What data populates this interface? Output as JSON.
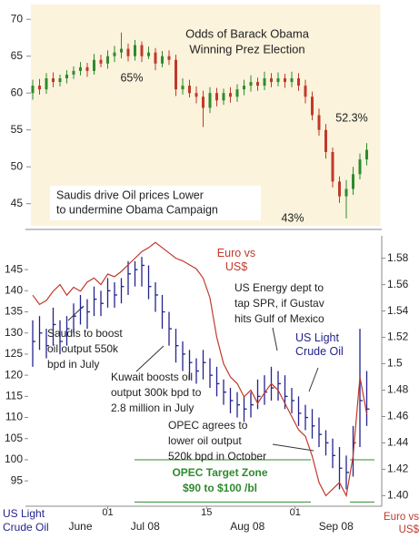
{
  "chart_data": [
    {
      "type": "ohlc",
      "title": [
        "Odds of Barack Obama",
        "Winning Prez Election"
      ],
      "up_color": "#2e8b2e",
      "down_color": "#c0392b",
      "background": "#fbf3dc",
      "x": [
        0,
        1,
        2,
        3,
        4,
        5,
        6,
        7,
        8,
        9,
        10,
        11,
        12,
        13,
        14,
        15,
        16,
        17,
        18,
        19,
        20,
        21,
        22,
        23,
        24,
        25,
        26,
        27,
        28,
        29,
        30,
        31,
        32,
        33,
        34,
        35,
        36,
        37,
        38,
        39,
        40,
        41,
        42,
        43,
        44,
        45,
        46,
        47,
        48,
        49
      ],
      "xlim": [
        -1,
        51
      ],
      "open": [
        60,
        61,
        60.5,
        62,
        61.5,
        62,
        62.5,
        63,
        63.5,
        63,
        64.5,
        64,
        65,
        65.5,
        66,
        65,
        66.5,
        65,
        65.5,
        64,
        65,
        64.5,
        60.5,
        61,
        60,
        59.5,
        58,
        60,
        59,
        60,
        59.5,
        60.5,
        61,
        61.5,
        61,
        62,
        61.5,
        62,
        61.5,
        62,
        61,
        59.5,
        57,
        55,
        52,
        48,
        46,
        47,
        49,
        51
      ],
      "high": [
        61.8,
        61.9,
        62.7,
        62.8,
        62.5,
        63.1,
        63.6,
        64.2,
        64.1,
        65.3,
        65.2,
        65.8,
        66.4,
        68.2,
        66.7,
        67.2,
        67,
        66.3,
        66.1,
        65.7,
        65.8,
        65.2,
        62,
        61.8,
        60.9,
        60.3,
        60.8,
        60.7,
        60.6,
        60.8,
        61.2,
        61.8,
        62.4,
        62.1,
        62.9,
        62.7,
        62.8,
        62.6,
        62.9,
        62.7,
        61.8,
        60.2,
        57.9,
        55.8,
        52.6,
        48.7,
        48.2,
        50,
        51.8,
        53.2
      ],
      "low": [
        59.1,
        59.8,
        59.9,
        60.8,
        60.9,
        61.3,
        61.9,
        62.4,
        62.2,
        62.5,
        63.5,
        63.3,
        64.2,
        64.7,
        64.3,
        64.4,
        64.2,
        64.6,
        63.1,
        63.5,
        63.8,
        59.6,
        59.8,
        59.4,
        58.6,
        55.4,
        57.3,
        58.2,
        58.4,
        58.7,
        58.8,
        59.7,
        60.2,
        60.3,
        60.4,
        60.8,
        60.9,
        60.7,
        60.8,
        60.3,
        58.6,
        56.3,
        54.2,
        51.1,
        47.2,
        45.1,
        43,
        46.2,
        48.3,
        50.2
      ],
      "values": [
        61,
        60.5,
        62,
        61.5,
        62,
        62.5,
        63,
        63.5,
        63,
        64.5,
        64,
        65,
        65.5,
        66,
        65,
        66.5,
        65,
        65.5,
        64,
        65,
        64.5,
        60.5,
        61,
        60,
        59.5,
        58,
        60,
        59,
        60,
        59.5,
        60.5,
        61,
        61.5,
        61,
        62,
        61.5,
        62,
        61.5,
        62,
        61,
        59.5,
        57,
        55,
        52,
        48,
        46,
        47,
        49,
        51,
        52.3
      ],
      "ylim": [
        42,
        72
      ],
      "yticks": [
        45,
        50,
        55,
        60,
        65,
        70
      ],
      "annotations": [
        [
          "65%"
        ],
        [
          "52.3%"
        ],
        [
          "43%"
        ],
        [
          "Saudis drive Oil prices Lower",
          "to undermine Obama Campaign"
        ]
      ]
    },
    {
      "type": "ohlc_line",
      "x": [
        0,
        1,
        2,
        3,
        4,
        5,
        6,
        7,
        8,
        9,
        10,
        11,
        12,
        13,
        14,
        15,
        16,
        17,
        18,
        19,
        20,
        21,
        22,
        23,
        24,
        25,
        26,
        27,
        28,
        29,
        30,
        31,
        32,
        33,
        34,
        35,
        36,
        37,
        38,
        39,
        40,
        41,
        42,
        43,
        44,
        45,
        46,
        47,
        48,
        49
      ],
      "xlim": [
        -1,
        51
      ],
      "xticks": [
        {
          "value": 11,
          "label": "01"
        },
        {
          "value": 25.5,
          "label": "15"
        },
        {
          "value": 38.5,
          "label": "01"
        }
      ],
      "month_labels": [
        {
          "value": 7,
          "label": "June"
        },
        {
          "value": 16.5,
          "label": "Jul 08"
        },
        {
          "value": 31.5,
          "label": "Aug 08"
        },
        {
          "value": 44.5,
          "label": "Sep 08"
        }
      ],
      "ylabel": "US Light Crude Oil",
      "y2label": "Euro vs US$",
      "series": [
        {
          "name": "US Light Crude Oil",
          "color": "#23238e",
          "high": [
            133,
            134,
            131,
            136,
            133,
            134,
            137,
            139,
            138,
            141,
            140,
            143,
            142,
            143,
            147,
            147,
            148,
            146,
            142,
            139,
            135,
            131,
            128,
            126,
            124,
            126,
            124,
            122,
            119,
            117,
            116,
            115,
            116,
            119,
            120,
            122,
            121,
            120,
            117,
            115,
            113,
            112,
            110,
            107,
            105,
            103,
            101,
            108,
            131,
            121
          ],
          "low": [
            122,
            126,
            124,
            127,
            125,
            127,
            130,
            132,
            131,
            134,
            134,
            136,
            136,
            137,
            139,
            141,
            141,
            138,
            135,
            131,
            127,
            123,
            121,
            119,
            118,
            119,
            117,
            115,
            113,
            111,
            110,
            109,
            110,
            112,
            113,
            114,
            114,
            112,
            111,
            108,
            107,
            105,
            103,
            101,
            98,
            93,
            93,
            96,
            103,
            108
          ],
          "values": [
            128,
            130,
            127,
            132,
            128,
            131,
            134,
            136,
            135,
            138,
            137,
            140,
            139,
            141,
            144,
            145,
            146,
            141,
            139,
            135,
            131,
            127,
            125,
            123,
            121,
            123,
            120,
            118,
            116,
            114,
            113,
            112,
            113,
            115,
            116,
            117,
            118,
            115,
            114,
            111,
            110,
            108,
            106,
            104,
            101,
            98,
            97,
            104,
            114,
            112
          ]
        },
        {
          "name": "Euro vs US$",
          "color": "#c0392b",
          "axis": "y2",
          "values": [
            1.552,
            1.545,
            1.548,
            1.555,
            1.56,
            1.552,
            1.558,
            1.555,
            1.562,
            1.565,
            1.56,
            1.568,
            1.566,
            1.57,
            1.575,
            1.58,
            1.585,
            1.588,
            1.592,
            1.588,
            1.584,
            1.58,
            1.578,
            1.575,
            1.572,
            1.565,
            1.55,
            1.52,
            1.5,
            1.49,
            1.485,
            1.475,
            1.48,
            1.47,
            1.478,
            1.485,
            1.48,
            1.47,
            1.46,
            1.45,
            1.445,
            1.43,
            1.41,
            1.4,
            1.405,
            1.41,
            1.4,
            1.43,
            1.49,
            1.462
          ]
        }
      ],
      "ylim": [
        89,
        153
      ],
      "yticks": [
        95,
        100,
        105,
        110,
        115,
        120,
        125,
        130,
        135,
        140,
        145
      ],
      "y2lim": [
        1.392,
        1.597
      ],
      "y2ticks": [
        {
          "value": 1.4,
          "label": "1.40"
        },
        1.42,
        1.44,
        1.46,
        1.48,
        1.5,
        1.52,
        1.54,
        1.56,
        1.58
      ],
      "target_zone": {
        "range": [
          90,
          100
        ],
        "color": "#2e8b2e",
        "label": [
          "OPEC Target Zone",
          "$90 to $100 /bl"
        ]
      },
      "annotations": [
        [
          "Saudis to boost",
          "oil output 550k",
          "bpd in July"
        ],
        [
          "Kuwait boosts oil",
          "output 300k bpd to",
          "2.8 million in July"
        ],
        [
          "US Energy dept to",
          "tap SPR, if Gustav",
          "hits Gulf of Mexico"
        ],
        [
          "OPEC agrees to",
          "lower oil output",
          "520k bpd in October"
        ]
      ]
    }
  ]
}
